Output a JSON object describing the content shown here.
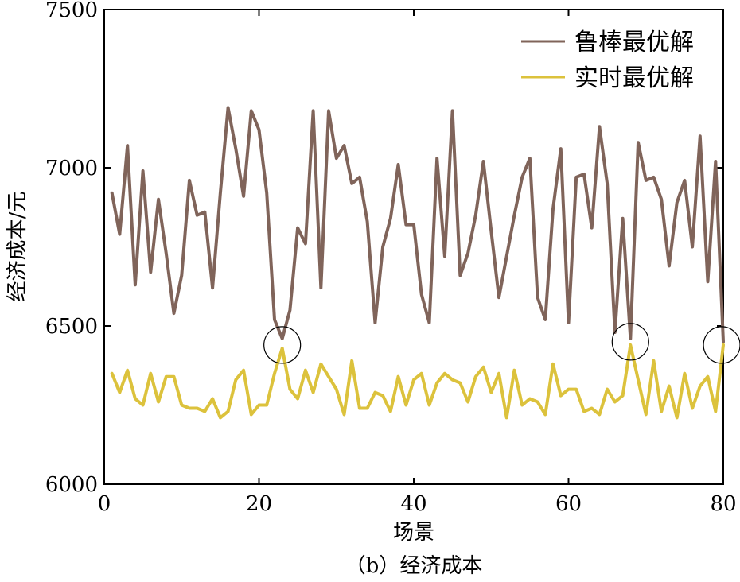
{
  "chart_data": {
    "type": "line",
    "caption": "（b）经济成本",
    "xlabel": "场景",
    "ylabel": "经济成本/元",
    "xlim": [
      0,
      80
    ],
    "ylim": [
      6000,
      7500
    ],
    "xticks": [
      0,
      20,
      40,
      60,
      80
    ],
    "yticks": [
      6000,
      6500,
      7000,
      7500
    ],
    "grid": false,
    "legend_position": "top-right",
    "series": [
      {
        "name": "鲁棒最优解",
        "color": "#80645a",
        "x": [
          1,
          2,
          3,
          4,
          5,
          6,
          7,
          8,
          9,
          10,
          11,
          12,
          13,
          14,
          15,
          16,
          17,
          18,
          19,
          20,
          21,
          22,
          23,
          24,
          25,
          26,
          27,
          28,
          29,
          30,
          31,
          32,
          33,
          34,
          35,
          36,
          37,
          38,
          39,
          40,
          41,
          42,
          43,
          44,
          45,
          46,
          47,
          48,
          49,
          50,
          51,
          52,
          53,
          54,
          55,
          56,
          57,
          58,
          59,
          60,
          61,
          62,
          63,
          64,
          65,
          66,
          67,
          68,
          69,
          70,
          71,
          72,
          73,
          74,
          75,
          76,
          77,
          78,
          79,
          80
        ],
        "values": [
          6920,
          6790,
          7070,
          6630,
          6990,
          6670,
          6900,
          6730,
          6540,
          6660,
          6960,
          6850,
          6860,
          6620,
          6920,
          7190,
          7060,
          6910,
          7180,
          7120,
          6920,
          6520,
          6460,
          6550,
          6810,
          6760,
          7180,
          6620,
          7180,
          7030,
          7070,
          6950,
          6970,
          6830,
          6510,
          6750,
          6840,
          7010,
          6820,
          6820,
          6600,
          6510,
          7030,
          6720,
          7180,
          6660,
          6730,
          6850,
          7020,
          6800,
          6590,
          6720,
          6850,
          6970,
          7030,
          6590,
          6520,
          6870,
          7060,
          6510,
          6970,
          6980,
          6810,
          7130,
          6950,
          6480,
          6840,
          6460,
          7080,
          6960,
          6970,
          6900,
          6690,
          6890,
          6960,
          6750,
          7100,
          6640,
          7020,
          6450
        ]
      },
      {
        "name": "实时最优解",
        "color": "#dcc23c",
        "x": [
          1,
          2,
          3,
          4,
          5,
          6,
          7,
          8,
          9,
          10,
          11,
          12,
          13,
          14,
          15,
          16,
          17,
          18,
          19,
          20,
          21,
          22,
          23,
          24,
          25,
          26,
          27,
          28,
          29,
          30,
          31,
          32,
          33,
          34,
          35,
          36,
          37,
          38,
          39,
          40,
          41,
          42,
          43,
          44,
          45,
          46,
          47,
          48,
          49,
          50,
          51,
          52,
          53,
          54,
          55,
          56,
          57,
          58,
          59,
          60,
          61,
          62,
          63,
          64,
          65,
          66,
          67,
          68,
          69,
          70,
          71,
          72,
          73,
          74,
          75,
          76,
          77,
          78,
          79,
          80
        ],
        "values": [
          6350,
          6290,
          6360,
          6270,
          6250,
          6350,
          6260,
          6340,
          6340,
          6250,
          6240,
          6240,
          6230,
          6270,
          6210,
          6230,
          6330,
          6360,
          6220,
          6250,
          6250,
          6350,
          6430,
          6300,
          6270,
          6360,
          6290,
          6380,
          6340,
          6300,
          6220,
          6390,
          6240,
          6240,
          6290,
          6280,
          6230,
          6340,
          6250,
          6330,
          6350,
          6250,
          6320,
          6350,
          6330,
          6320,
          6260,
          6340,
          6370,
          6290,
          6350,
          6210,
          6360,
          6250,
          6270,
          6260,
          6220,
          6380,
          6280,
          6300,
          6300,
          6230,
          6240,
          6220,
          6300,
          6260,
          6280,
          6440,
          6330,
          6220,
          6390,
          6230,
          6310,
          6210,
          6350,
          6240,
          6310,
          6340,
          6230,
          6440
        ]
      }
    ],
    "annotations": [
      {
        "type": "circle",
        "x": 23,
        "y": 6440
      },
      {
        "type": "circle",
        "x": 68,
        "y": 6450
      },
      {
        "type": "circle",
        "x": 79.8,
        "y": 6440
      }
    ]
  }
}
